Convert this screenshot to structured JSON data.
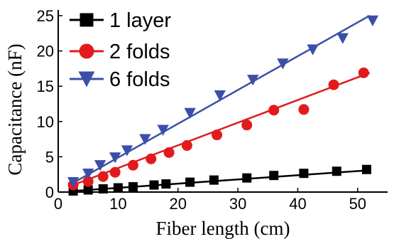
{
  "chart_data": {
    "type": "scatter",
    "xlabel": "Fiber length (cm)",
    "ylabel": "Capacitance (nF)",
    "xlim": [
      0,
      55
    ],
    "ylim": [
      0,
      25
    ],
    "xticks": [
      "0",
      "10",
      "20",
      "30",
      "40",
      "50"
    ],
    "yticks": [
      "0",
      "5",
      "10",
      "15",
      "20",
      "25"
    ],
    "legend_position": "top-left",
    "series": [
      {
        "name": "1 layer",
        "color": "#000000",
        "marker": "square",
        "x": [
          2.5,
          5,
          7.5,
          10,
          12.5,
          16,
          18,
          22,
          26,
          31.5,
          36,
          41,
          46.5,
          51.5
        ],
        "y": [
          0.15,
          0.3,
          0.45,
          0.6,
          0.75,
          1.0,
          1.15,
          1.4,
          1.7,
          2.0,
          2.35,
          2.65,
          2.95,
          3.2
        ],
        "fit": [
          [
            2.5,
            0.15
          ],
          [
            52,
            3.1
          ]
        ]
      },
      {
        "name": "2 folds",
        "color": "#e31a1c",
        "marker": "circle",
        "x": [
          2.5,
          5,
          7.5,
          9.5,
          12.5,
          15.5,
          18.5,
          21.5,
          26.5,
          31.5,
          36,
          41,
          46,
          51
        ],
        "y": [
          1.0,
          1.5,
          2.2,
          2.8,
          3.8,
          4.7,
          5.6,
          6.6,
          8.1,
          9.5,
          11.6,
          11.7,
          15.2,
          16.9
        ],
        "fit": [
          [
            2.5,
            1.0
          ],
          [
            52,
            16.9
          ]
        ]
      },
      {
        "name": "6 folds",
        "color": "#3b4fa8",
        "marker": "triangle-down",
        "x": [
          2.5,
          5,
          7,
          9.5,
          11.5,
          14.5,
          17.5,
          22,
          27,
          32.5,
          37.5,
          42.5,
          47.5,
          52.5
        ],
        "y": [
          1.4,
          2.6,
          3.8,
          4.9,
          5.9,
          7.5,
          8.8,
          11.2,
          13.7,
          15.9,
          18.2,
          20.2,
          21.8,
          24.3
        ],
        "fit": [
          [
            2.5,
            1.3
          ],
          [
            52,
            25
          ]
        ]
      }
    ]
  }
}
